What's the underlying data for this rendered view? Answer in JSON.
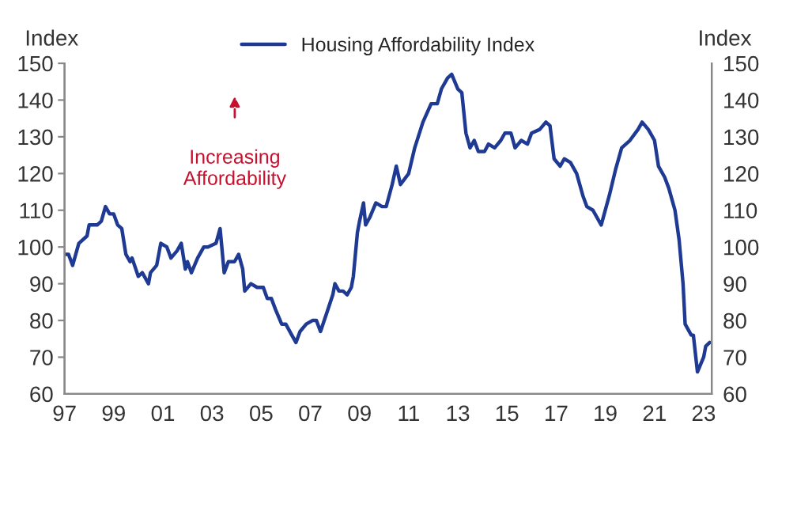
{
  "chart_data": {
    "type": "line",
    "ylabel": "Index",
    "y2label": "Index",
    "annotations": [
      "Increasing\nAffordability"
    ],
    "legend": "top",
    "grid": false,
    "marker": "none",
    "line_style": "solid",
    "xlim": [
      "1997-01-01",
      "2023-05-01"
    ],
    "xticks": [
      {
        "value": "1997",
        "label": "97"
      },
      {
        "value": "1999",
        "label": "99"
      },
      {
        "value": "2001",
        "label": "01"
      },
      {
        "value": "2003",
        "label": "03"
      },
      {
        "value": "2005",
        "label": "05"
      },
      {
        "value": "2007",
        "label": "07"
      },
      {
        "value": "2009",
        "label": "09"
      },
      {
        "value": "2011",
        "label": "11"
      },
      {
        "value": "2013",
        "label": "13"
      },
      {
        "value": "2015",
        "label": "15"
      },
      {
        "value": "2017",
        "label": "17"
      },
      {
        "value": "2019",
        "label": "19"
      },
      {
        "value": "2021",
        "label": "21"
      },
      {
        "value": "2023",
        "label": "23"
      }
    ],
    "ylim": [
      60,
      150
    ],
    "yticks": [
      60,
      70,
      80,
      90,
      100,
      110,
      120,
      130,
      140,
      150
    ],
    "y2lim": [
      60,
      150
    ],
    "y2ticks": [
      60,
      70,
      80,
      90,
      100,
      110,
      120,
      130,
      140,
      150
    ],
    "series": [
      {
        "name": "Housing Affordability Index",
        "color": "#1f3a93",
        "x": [
          "1997-01",
          "1997-03",
          "1997-05",
          "1997-08",
          "1997-12",
          "1998-01",
          "1998-05",
          "1998-07",
          "1998-09",
          "1998-11",
          "1999-01",
          "1999-03",
          "1999-05",
          "1999-07",
          "1999-09",
          "1999-10",
          "2000-01",
          "2000-03",
          "2000-06",
          "2000-07",
          "2000-10",
          "2000-12",
          "2001-03",
          "2001-05",
          "2001-08",
          "2001-10",
          "2001-12",
          "2002-01",
          "2002-03",
          "2002-06",
          "2002-09",
          "2002-11",
          "2003-03",
          "2003-05",
          "2003-07",
          "2003-09",
          "2003-12",
          "2004-02",
          "2004-04",
          "2004-05",
          "2004-08",
          "2004-11",
          "2005-02",
          "2005-04",
          "2005-06",
          "2005-08",
          "2005-11",
          "2006-01",
          "2006-04",
          "2006-06",
          "2006-08",
          "2006-11",
          "2007-02",
          "2007-04",
          "2007-06",
          "2007-09",
          "2007-12",
          "2008-01",
          "2008-03",
          "2008-05",
          "2008-07",
          "2008-09",
          "2008-10",
          "2008-12",
          "2009-01",
          "2009-03",
          "2009-04",
          "2009-06",
          "2009-09",
          "2009-12",
          "2010-02",
          "2010-05",
          "2010-07",
          "2010-09",
          "2011-01",
          "2011-04",
          "2011-08",
          "2011-12",
          "2012-03",
          "2012-05",
          "2012-08",
          "2012-10",
          "2013-01",
          "2013-03",
          "2013-05",
          "2013-07",
          "2013-09",
          "2013-11",
          "2014-02",
          "2014-04",
          "2014-07",
          "2014-10",
          "2014-12",
          "2015-03",
          "2015-05",
          "2015-08",
          "2015-11",
          "2016-01",
          "2016-05",
          "2016-08",
          "2016-10",
          "2016-12",
          "2017-03",
          "2017-05",
          "2017-08",
          "2017-11",
          "2018-02",
          "2018-04",
          "2018-07",
          "2018-11",
          "2019-03",
          "2019-06",
          "2019-09",
          "2020-01",
          "2020-05",
          "2020-07",
          "2020-10",
          "2021-01",
          "2021-03",
          "2021-06",
          "2021-08",
          "2021-11",
          "2022-01",
          "2022-03",
          "2022-04",
          "2022-07",
          "2022-08",
          "2022-10",
          "2023-01",
          "2023-02",
          "2023-04"
        ],
        "values": [
          98,
          98,
          95,
          101,
          103,
          106,
          106,
          107,
          111,
          109,
          109,
          106,
          105,
          98,
          96,
          97,
          92,
          93,
          90,
          93,
          95,
          101,
          100,
          97,
          99,
          101,
          94,
          96,
          93,
          97,
          100,
          100,
          101,
          105,
          93,
          96,
          96,
          98,
          94,
          88,
          90,
          89,
          89,
          86,
          86,
          83,
          79,
          79,
          76,
          74,
          77,
          79,
          80,
          80,
          77,
          82,
          87,
          90,
          88,
          88,
          87,
          89,
          92,
          104,
          107,
          112,
          106,
          108,
          112,
          111,
          111,
          117,
          122,
          117,
          120,
          127,
          134,
          139,
          139,
          143,
          146,
          147,
          143,
          142,
          131,
          127,
          129,
          126,
          126,
          128,
          127,
          129,
          131,
          131,
          127,
          129,
          128,
          131,
          132,
          134,
          133,
          124,
          122,
          124,
          123,
          120,
          114,
          111,
          110,
          106,
          114,
          121,
          127,
          129,
          132,
          134,
          132,
          129,
          122,
          119,
          116,
          110,
          102,
          90,
          79,
          76,
          76,
          66,
          70,
          73,
          74
        ]
      }
    ]
  }
}
